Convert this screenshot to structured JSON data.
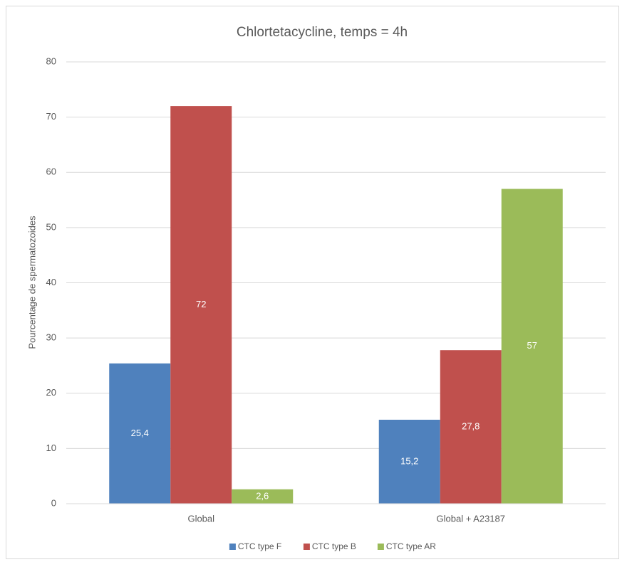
{
  "chart_data": {
    "type": "bar",
    "title": "Chlortetacycline, temps = 4h",
    "y_label": "Pourcentage  de spermatozoides",
    "categories": [
      "Global",
      "Global + A23187"
    ],
    "series": [
      {
        "name": "CTC type F",
        "color": "#4f81bd",
        "values": [
          25.4,
          15.2
        ],
        "value_labels": [
          "25,4",
          "15,2"
        ]
      },
      {
        "name": "CTC type B",
        "color": "#c0504d",
        "values": [
          72,
          27.8
        ],
        "value_labels": [
          "72",
          "27,8"
        ]
      },
      {
        "name": "CTC type AR",
        "color": "#9bbb59",
        "values": [
          2.6,
          57
        ],
        "value_labels": [
          "2,6",
          "57"
        ]
      }
    ],
    "ylim": [
      0,
      80
    ],
    "yticks": [
      0,
      10,
      20,
      30,
      40,
      50,
      60,
      70,
      80
    ],
    "grid": true,
    "legend": "bottom"
  }
}
